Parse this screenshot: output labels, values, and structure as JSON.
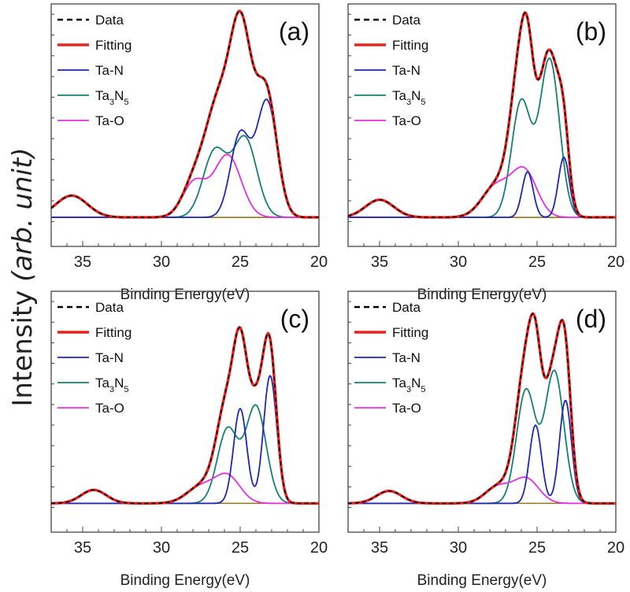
{
  "figure": {
    "ylabel_prefix": "Intensity ",
    "ylabel_italic": "(arb. unit)"
  },
  "legend_entries": [
    {
      "key": "data",
      "label": "Data",
      "color": "#000000",
      "dashed": true
    },
    {
      "key": "fitting",
      "label": "Fitting",
      "color": "#e8231f"
    },
    {
      "key": "ta_n",
      "label": "Ta-N",
      "color": "#1f25b4"
    },
    {
      "key": "ta3n5",
      "label": "Ta",
      "sub1": "3",
      "mid": "N",
      "sub2": "5",
      "color": "#138072"
    },
    {
      "key": "ta_o",
      "label": "Ta-O",
      "color": "#e52ee0"
    }
  ],
  "colors": {
    "fitting": "#e8231f",
    "data": "#000000",
    "ta_n": "#1f25b4",
    "ta3n5": "#138072",
    "ta_o": "#e52ee0",
    "baseline": "#8a7a1a"
  },
  "chart_data": [
    {
      "type": "line",
      "panel_label": "(a)",
      "xlabel": "Binding Energy(eV)",
      "xlim": [
        37,
        20
      ],
      "x_ticks": [
        35,
        30,
        25,
        20
      ],
      "ylim": [
        -0.12,
        1.05
      ],
      "legend_position": "top-left",
      "background": 0.02,
      "components": {
        "ta_n": [
          {
            "c": 23.3,
            "a": 0.56,
            "w": 0.65
          },
          {
            "c": 25.0,
            "a": 0.4,
            "w": 0.62
          }
        ],
        "ta3n5": [
          {
            "c": 24.7,
            "a": 0.38,
            "w": 0.75
          },
          {
            "c": 26.6,
            "a": 0.32,
            "w": 0.75
          }
        ],
        "ta_o": [
          {
            "c": 25.8,
            "a": 0.3,
            "w": 0.85
          },
          {
            "c": 27.9,
            "a": 0.17,
            "w": 0.75
          }
        ],
        "satellite": {
          "c": 35.7,
          "a": 0.105,
          "w": 1.0
        }
      }
    },
    {
      "type": "line",
      "panel_label": "(b)",
      "xlabel": "Binding Energy(eV)",
      "xlim": [
        37,
        20
      ],
      "x_ticks": [
        35,
        30,
        25,
        20
      ],
      "ylim": [
        -0.12,
        1.05
      ],
      "legend_position": "top-left",
      "background": 0.02,
      "components": {
        "ta_n": [
          {
            "c": 23.3,
            "a": 0.29,
            "w": 0.35
          },
          {
            "c": 25.6,
            "a": 0.22,
            "w": 0.35
          }
        ],
        "ta3n5": [
          {
            "c": 24.2,
            "a": 0.76,
            "w": 0.62
          },
          {
            "c": 26.0,
            "a": 0.56,
            "w": 0.62
          }
        ],
        "ta_o": [
          {
            "c": 25.8,
            "a": 0.22,
            "w": 0.8
          },
          {
            "c": 27.6,
            "a": 0.15,
            "w": 0.9
          }
        ],
        "satellite": {
          "c": 35.0,
          "a": 0.085,
          "w": 0.9
        }
      }
    },
    {
      "type": "line",
      "panel_label": "(c)",
      "xlabel": "Binding Energy(eV)",
      "xlim": [
        37,
        20
      ],
      "x_ticks": [
        35,
        30,
        25,
        20
      ],
      "ylim": [
        -0.12,
        1.05
      ],
      "legend_position": "top-left",
      "background": 0.02,
      "components": {
        "ta_n": [
          {
            "c": 23.1,
            "a": 0.62,
            "w": 0.42
          },
          {
            "c": 25.0,
            "a": 0.46,
            "w": 0.42
          }
        ],
        "ta3n5": [
          {
            "c": 24.0,
            "a": 0.47,
            "w": 0.65
          },
          {
            "c": 25.8,
            "a": 0.36,
            "w": 0.65
          }
        ],
        "ta_o": [
          {
            "c": 25.8,
            "a": 0.13,
            "w": 0.8
          },
          {
            "c": 27.5,
            "a": 0.08,
            "w": 0.9
          }
        ],
        "satellite": {
          "c": 34.3,
          "a": 0.065,
          "w": 0.8
        }
      }
    },
    {
      "type": "line",
      "panel_label": "(d)",
      "xlabel": "Binding Energy(eV)",
      "xlim": [
        37,
        20
      ],
      "x_ticks": [
        35,
        30,
        25,
        20
      ],
      "ylim": [
        -0.12,
        1.05
      ],
      "legend_position": "top-left",
      "background": 0.02,
      "components": {
        "ta_n": [
          {
            "c": 23.2,
            "a": 0.5,
            "w": 0.38
          },
          {
            "c": 25.1,
            "a": 0.38,
            "w": 0.38
          }
        ],
        "ta3n5": [
          {
            "c": 23.9,
            "a": 0.64,
            "w": 0.6
          },
          {
            "c": 25.7,
            "a": 0.55,
            "w": 0.6
          }
        ],
        "ta_o": [
          {
            "c": 25.7,
            "a": 0.12,
            "w": 0.8
          },
          {
            "c": 27.5,
            "a": 0.08,
            "w": 0.8
          }
        ],
        "satellite": {
          "c": 34.4,
          "a": 0.06,
          "w": 0.8
        }
      }
    }
  ]
}
